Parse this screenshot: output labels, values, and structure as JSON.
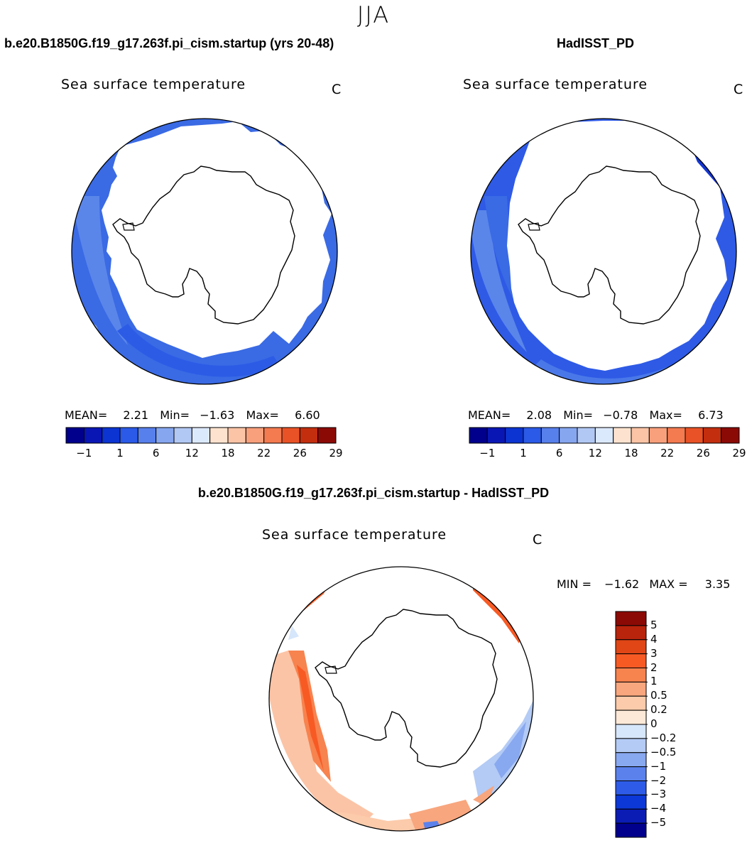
{
  "season": "JJA",
  "panels": {
    "left": {
      "case": "b.e20.B1850G.f19_g17.263f.pi_cism.startup (yrs 20-48)",
      "variable": "Sea surface temperature",
      "units": "C",
      "stats": {
        "mean_label": "MEAN=",
        "mean": "2.21",
        "min_label": "Min=",
        "min": "−1.63",
        "max_label": "Max=",
        "max": "6.60"
      }
    },
    "right": {
      "case": "HadISST_PD",
      "variable": "Sea surface temperature",
      "units": "C",
      "stats": {
        "mean_label": "MEAN=",
        "mean": "2.08",
        "min_label": "Min=",
        "min": "−0.78",
        "max_label": "Max=",
        "max": "6.73"
      }
    },
    "diff": {
      "case": "b.e20.B1850G.f19_g17.263f.pi_cism.startup - HadISST_PD",
      "variable": "Sea surface temperature",
      "units": "C",
      "stats": {
        "min_label": "MIN =",
        "min": "−1.62",
        "max_label": "MAX =",
        "max": "3.35"
      }
    }
  },
  "abs_colorbar": {
    "colors": [
      "#00008c",
      "#0a16b4",
      "#0c34d2",
      "#2b5ae8",
      "#5880ec",
      "#86a6f0",
      "#b2c8f4",
      "#dbe9fc",
      "#fde3cf",
      "#fbc4a6",
      "#f8a07c",
      "#f47a50",
      "#e95226",
      "#c22e0e",
      "#8b0a06"
    ],
    "tick_labels": [
      "−1",
      "1",
      "6",
      "12",
      "18",
      "22",
      "26",
      "29"
    ]
  },
  "diff_colorbar": {
    "colors_top_to_bottom": [
      "#8b0a06",
      "#b8240c",
      "#e04616",
      "#f85a24",
      "#f7834f",
      "#f8a67e",
      "#fccbab",
      "#fde9d7",
      "#d6e6fb",
      "#b3cbf5",
      "#88a8f0",
      "#5b82ec",
      "#2e5ce8",
      "#0c38d8",
      "#0b1cb4",
      "#00008c"
    ],
    "tick_labels": [
      "5",
      "4",
      "3",
      "2",
      "1",
      "0.5",
      "0.2",
      "0",
      "−0.2",
      "−0.5",
      "−1",
      "−2",
      "−3",
      "−4",
      "−5"
    ]
  }
}
